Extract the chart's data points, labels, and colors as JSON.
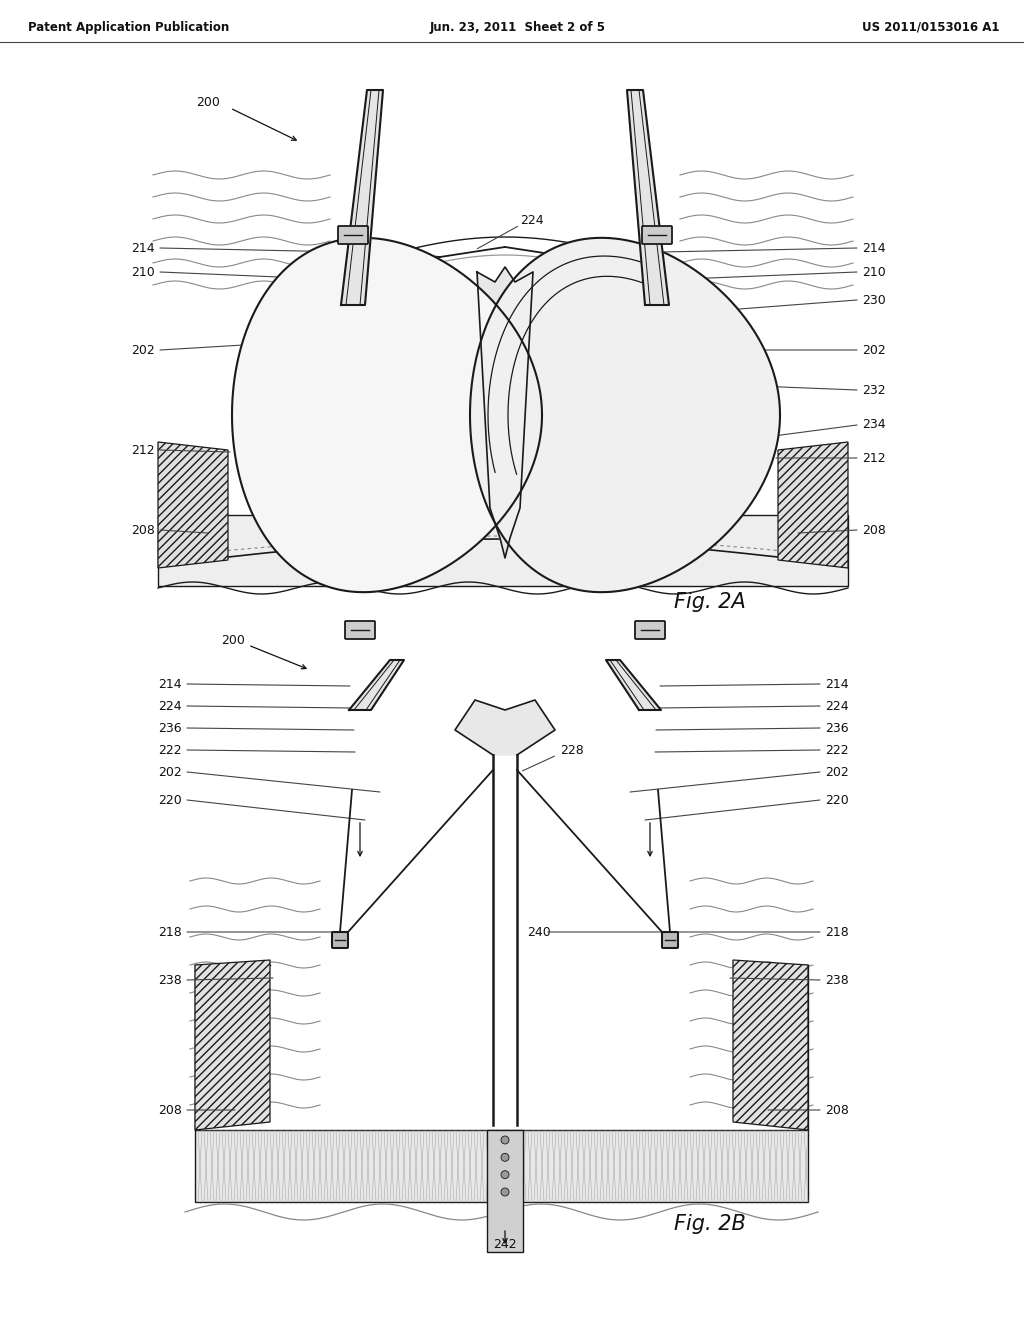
{
  "bg_color": "#ffffff",
  "lc": "#1a1a1a",
  "header_left": "Patent Application Publication",
  "header_mid": "Jun. 23, 2011  Sheet 2 of 5",
  "header_right": "US 2011/0153016 A1",
  "fig2a_label": "Fig. 2A",
  "fig2b_label": "Fig. 2B",
  "ref_fs": 9,
  "hdr_fs": 8.5
}
